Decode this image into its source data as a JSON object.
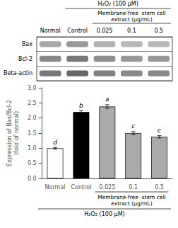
{
  "chart_data": [
    {
      "type": "blot",
      "categories": [
        "Normal",
        "Control",
        "0.025",
        "0.1",
        "0.5"
      ],
      "series": [
        {
          "name": "Bax",
          "colors": [
            "#a8a8a8",
            "#989898",
            "#b0b0b0",
            "#b8b8b8",
            "#b8b8b8"
          ]
        },
        {
          "name": "Bcl-2",
          "colors": [
            "#888888",
            "#787878",
            "#909090",
            "#989898",
            "#989898"
          ]
        },
        {
          "name": "Beta-actin",
          "colors": [
            "#787878",
            "#686868",
            "#808080",
            "#888888",
            "#888888"
          ]
        }
      ],
      "annotations": [
        "H₂O₂ (100 μM)",
        "Membrane-free  stem cell",
        "extract (μg/mL)"
      ]
    },
    {
      "type": "bar",
      "categories": [
        "Normal",
        "Control",
        "0.025",
        "0.1",
        "0.5"
      ],
      "values": [
        1.0,
        2.2,
        2.38,
        1.5,
        1.38
      ],
      "errors": [
        0.03,
        0.05,
        0.06,
        0.05,
        0.04
      ],
      "colors": [
        "#ffffff",
        "#000000",
        "#aaaaaa",
        "#aaaaaa",
        "#aaaaaa"
      ],
      "letter_labels": [
        "d",
        "b",
        "a",
        "c",
        "c"
      ],
      "ylabel": "Expression of Bax/Bcl-2\n(fold of normal)",
      "ylim": [
        0.0,
        3.0
      ],
      "yticks": [
        {
          "value": 0,
          "label": "0.0"
        },
        {
          "value": 0.5,
          "label": "0.5"
        },
        {
          "value": 1,
          "label": "1.0"
        },
        {
          "value": 1.5,
          "label": "1.5"
        },
        {
          "value": 2,
          "label": "2.0"
        },
        {
          "value": 2.5,
          "label": "2.5"
        },
        {
          "value": 3,
          "label": "3.0"
        }
      ],
      "annotations": [
        "Membrane-free  stem cell",
        "extract (μg/mL)",
        "H₂O₂ (100 μM)"
      ],
      "grid": false
    }
  ]
}
